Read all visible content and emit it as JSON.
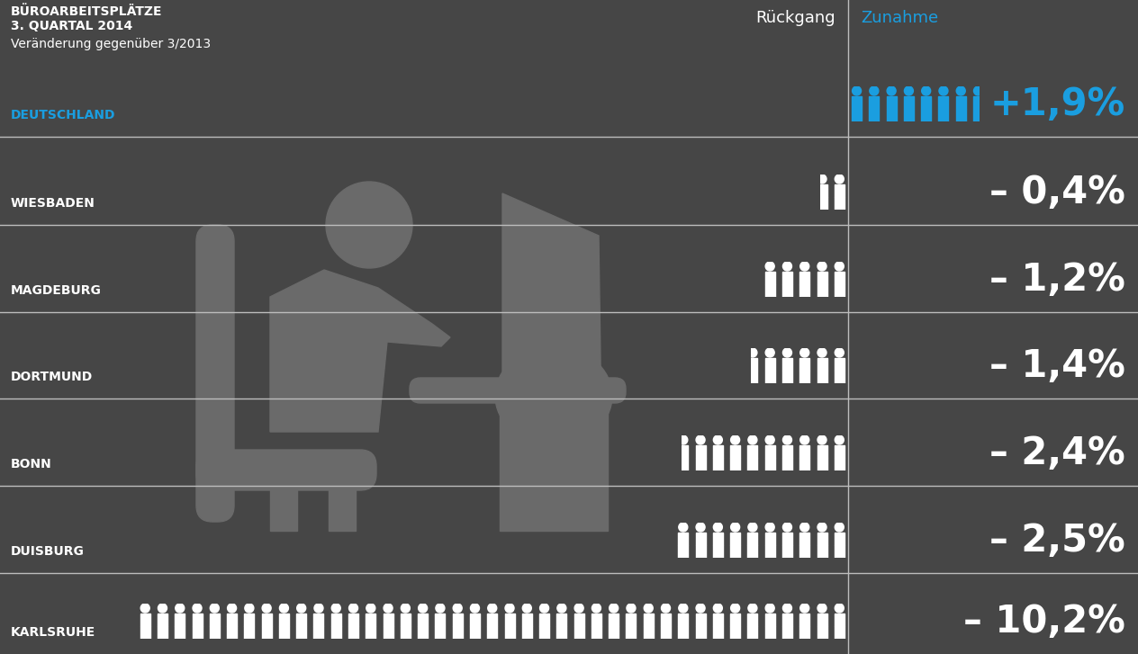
{
  "chart_data": {
    "type": "bar",
    "orientation": "horizontal",
    "title": "BÜROARBEITSPLÄTZE\n3. QUARTAL 2014",
    "subtitle": "Veränderung gegenüber 3/2013",
    "annotations": [
      "Rückgang",
      "Zunahme"
    ],
    "categories": [
      "DEUTSCHLAND",
      "WIESBADEN",
      "MAGDEBURG",
      "DORTMUND",
      "BONN",
      "DUISBURG",
      "KARLSRUHE"
    ],
    "values": [
      1.9,
      -0.4,
      -1.2,
      -1.4,
      -2.4,
      -2.5,
      -10.2
    ],
    "value_labels": [
      "+1,9%",
      "– 0,4%",
      "– 1,2%",
      "– 1,4%",
      "– 2,4%",
      "– 2,5%",
      "– 10,2%"
    ],
    "colors": [
      "#1a9ee0",
      "#ffffff",
      "#ffffff",
      "#ffffff",
      "#ffffff",
      "#ffffff",
      "#ffffff"
    ],
    "data_labels": true,
    "tick_labels": false,
    "xlim": [
      -10.4,
      2.05
    ]
  }
}
